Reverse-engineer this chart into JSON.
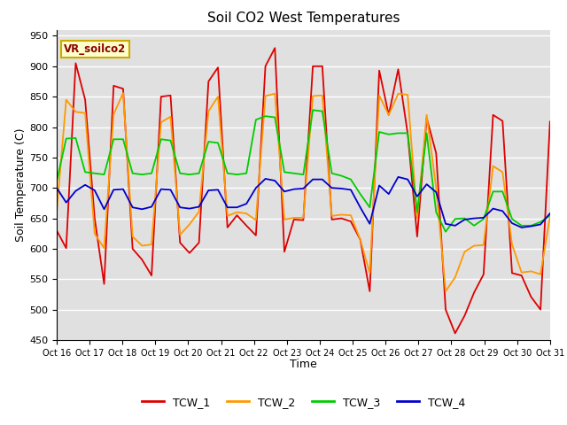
{
  "title": "Soil CO2 West Temperatures",
  "xlabel": "Time",
  "ylabel": "Soil Temperature (C)",
  "ylim": [
    450,
    960
  ],
  "yticks": [
    450,
    500,
    550,
    600,
    650,
    700,
    750,
    800,
    850,
    900,
    950
  ],
  "x_labels": [
    "Oct 16",
    "Oct 17",
    "Oct 18",
    "Oct 19",
    "Oct 20",
    "Oct 21",
    "Oct 22",
    "Oct 23",
    "Oct 24",
    "Oct 25",
    "Oct 26",
    "Oct 27",
    "Oct 28",
    "Oct 29",
    "Oct 30",
    "Oct 31"
  ],
  "annotation_text": "VR_soilco2",
  "plot_bg_color": "#e0e0e0",
  "fig_bg_color": "#ffffff",
  "grid_color": "#ffffff",
  "series_colors": {
    "TCW_1": "#dd0000",
    "TCW_2": "#ff9900",
    "TCW_3": "#00cc00",
    "TCW_4": "#0000cc"
  },
  "linewidth": 1.3,
  "TCW_1": [
    630,
    601,
    905,
    845,
    650,
    542,
    868,
    863,
    600,
    582,
    556,
    850,
    852,
    610,
    593,
    610,
    875,
    898,
    635,
    655,
    638,
    622,
    900,
    930,
    595,
    648,
    647,
    900,
    900,
    648,
    650,
    645,
    615,
    530,
    893,
    820,
    895,
    789,
    620,
    815,
    757,
    500,
    461,
    490,
    528,
    558,
    820,
    810,
    560,
    556,
    521,
    500,
    809
  ],
  "TCW_2": [
    660,
    845,
    825,
    823,
    625,
    601,
    821,
    856,
    620,
    605,
    607,
    808,
    817,
    623,
    640,
    661,
    826,
    850,
    654,
    660,
    658,
    647,
    851,
    855,
    648,
    651,
    651,
    851,
    852,
    654,
    656,
    655,
    615,
    560,
    852,
    820,
    855,
    853,
    650,
    820,
    700,
    530,
    553,
    595,
    605,
    606,
    736,
    726,
    607,
    561,
    563,
    558,
    653
  ],
  "TCW_3": [
    711,
    781,
    782,
    726,
    724,
    722,
    780,
    780,
    724,
    722,
    724,
    780,
    778,
    724,
    722,
    724,
    776,
    774,
    724,
    722,
    724,
    812,
    818,
    816,
    726,
    724,
    722,
    828,
    826,
    724,
    720,
    714,
    690,
    668,
    792,
    788,
    790,
    790,
    660,
    790,
    660,
    628,
    649,
    650,
    638,
    649,
    694,
    694,
    649,
    638,
    638,
    644,
    655
  ],
  "TCW_4": [
    700,
    676,
    695,
    705,
    696,
    665,
    697,
    698,
    668,
    665,
    669,
    698,
    697,
    668,
    666,
    669,
    696,
    697,
    668,
    668,
    674,
    700,
    715,
    712,
    694,
    698,
    699,
    714,
    714,
    700,
    699,
    697,
    668,
    641,
    704,
    690,
    718,
    714,
    686,
    706,
    693,
    641,
    638,
    648,
    650,
    651,
    666,
    662,
    642,
    635,
    637,
    640,
    658
  ]
}
